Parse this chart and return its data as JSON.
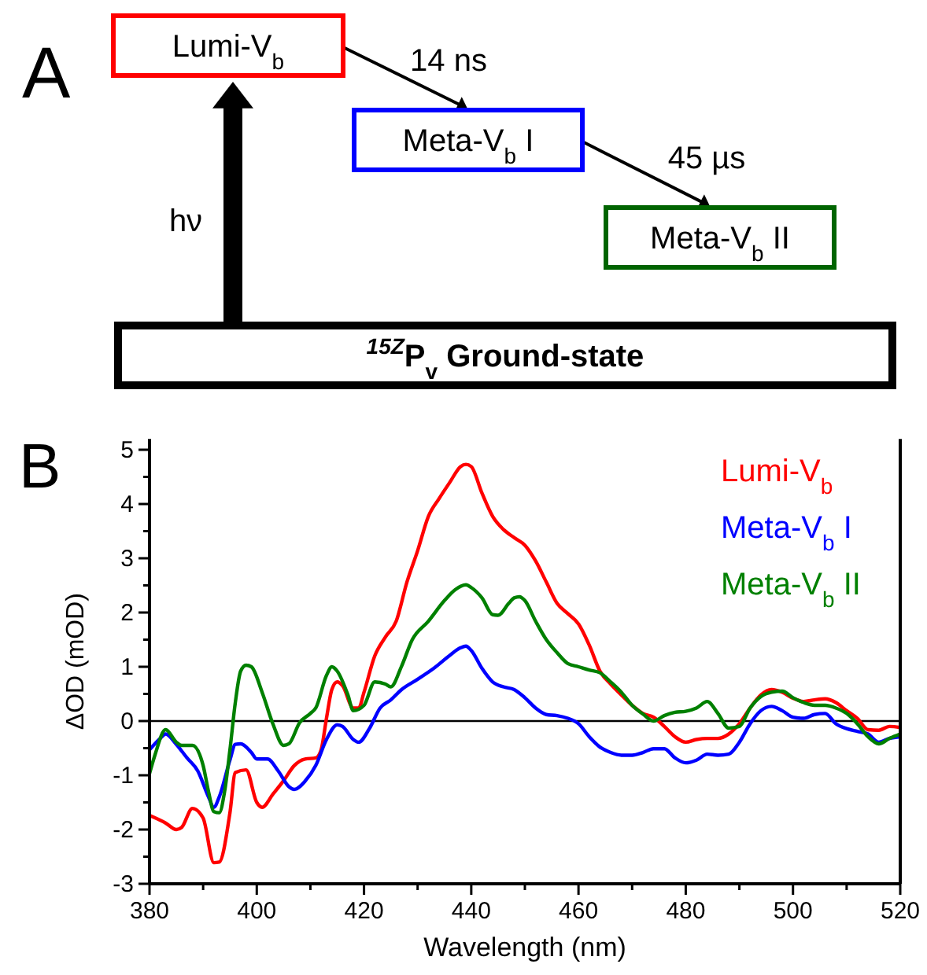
{
  "chart_data": [
    {
      "type": "other",
      "title": "A",
      "annotations": [
        "Lumi-V$_{b}$",
        "14 ns",
        "Meta-V$_{b}$ I",
        "45 µs",
        "Meta-V$_{b}$ II",
        "hν",
        "$^{15Z}$P$_{v}$ Ground-state"
      ]
    },
    {
      "type": "line",
      "title": "B",
      "xlabel": "Wavelength (nm)",
      "ylabel": "ΔOD (mOD)",
      "xlim": [
        380,
        520
      ],
      "ylim": [
        -3,
        5.2
      ],
      "xticks": [
        380,
        {
          "value": 390,
          "label": null
        },
        400,
        {
          "value": 410,
          "label": null
        },
        420,
        {
          "value": 430,
          "label": null
        },
        440,
        {
          "value": 450,
          "label": null
        },
        460,
        {
          "value": 470,
          "label": null
        },
        480,
        {
          "value": 490,
          "label": null
        },
        500,
        {
          "value": 510,
          "label": null
        },
        520
      ],
      "yticks": [
        -3,
        {
          "value": -2.5,
          "label": null
        },
        -2,
        {
          "value": -1.5,
          "label": null
        },
        -1,
        {
          "value": -0.5,
          "label": null
        },
        0,
        {
          "value": 0.5,
          "label": null
        },
        1,
        {
          "value": 1.5,
          "label": null
        },
        2,
        {
          "value": 2.5,
          "label": null
        },
        3,
        {
          "value": 3.5,
          "label": null
        },
        4,
        {
          "value": 4.5,
          "label": null
        },
        5
      ],
      "grid": false,
      "legend": "top right",
      "marker": "none",
      "line_style": "solid",
      "ref_lines": [
        {
          "axis": "y",
          "value": 0,
          "color": "#000000"
        }
      ],
      "series": [
        {
          "name": "Lumi-V$_{b}$",
          "color": "#ff0000",
          "x": [
            380,
            383,
            385,
            386,
            388,
            390,
            392,
            393,
            395,
            396,
            398,
            400,
            401,
            403,
            405,
            407,
            409,
            411,
            412,
            413,
            414,
            415,
            416,
            418,
            419,
            420,
            422,
            424,
            426,
            428,
            430,
            432,
            434,
            436,
            438,
            439,
            440,
            442,
            444,
            446,
            448,
            450,
            452,
            454,
            456,
            458,
            460,
            462,
            464,
            466,
            468,
            470,
            472,
            474,
            476,
            478,
            480,
            482,
            484,
            486,
            488,
            490,
            492,
            494,
            496,
            498,
            500,
            502,
            504,
            506,
            508,
            510,
            512,
            514,
            516,
            518,
            520
          ],
          "values": [
            -1.74,
            -1.88,
            -2.0,
            -1.96,
            -1.61,
            -1.79,
            -2.61,
            -2.6,
            -1.69,
            -0.95,
            -0.9,
            -1.5,
            -1.59,
            -1.35,
            -1.1,
            -0.82,
            -0.7,
            -0.68,
            -0.53,
            0.05,
            0.58,
            0.72,
            0.65,
            0.24,
            0.24,
            0.53,
            1.2,
            1.55,
            1.84,
            2.56,
            3.14,
            3.77,
            4.1,
            4.4,
            4.69,
            4.73,
            4.69,
            4.2,
            3.77,
            3.53,
            3.38,
            3.24,
            2.95,
            2.56,
            2.17,
            1.98,
            1.79,
            1.4,
            0.92,
            0.68,
            0.48,
            0.29,
            0.14,
            0.07,
            -0.1,
            -0.29,
            -0.39,
            -0.34,
            -0.32,
            -0.32,
            -0.24,
            -0.05,
            0.24,
            0.48,
            0.58,
            0.53,
            0.42,
            0.36,
            0.39,
            0.41,
            0.34,
            0.19,
            0.05,
            -0.16,
            -0.17,
            -0.1,
            -0.12
          ]
        },
        {
          "name": "Meta-V$_{b}$ I",
          "color": "#0000ff",
          "x": [
            380,
            382,
            383,
            385,
            387,
            389,
            391,
            392,
            393,
            395,
            396,
            397,
            399,
            400,
            402,
            404,
            406,
            407,
            409,
            411,
            413,
            415,
            416,
            418,
            419,
            421,
            423,
            425,
            427,
            430,
            433,
            436,
            438,
            439,
            440,
            442,
            444,
            446,
            448,
            450,
            452,
            454,
            456,
            458,
            460,
            462,
            464,
            466,
            468,
            470,
            472,
            474,
            476,
            478,
            480,
            482,
            484,
            486,
            488,
            490,
            492,
            494,
            496,
            498,
            500,
            502,
            504,
            506,
            508,
            510,
            512,
            514,
            516,
            518,
            520
          ],
          "values": [
            -0.53,
            -0.32,
            -0.24,
            -0.43,
            -0.68,
            -0.92,
            -1.4,
            -1.59,
            -1.4,
            -0.72,
            -0.43,
            -0.42,
            -0.58,
            -0.7,
            -0.7,
            -0.92,
            -1.21,
            -1.26,
            -1.11,
            -0.82,
            -0.34,
            -0.07,
            -0.1,
            -0.34,
            -0.39,
            -0.14,
            0.24,
            0.39,
            0.58,
            0.77,
            0.97,
            1.21,
            1.35,
            1.38,
            1.3,
            0.97,
            0.72,
            0.63,
            0.58,
            0.43,
            0.24,
            0.12,
            0.1,
            0.05,
            -0.05,
            -0.29,
            -0.48,
            -0.58,
            -0.63,
            -0.63,
            -0.58,
            -0.51,
            -0.51,
            -0.68,
            -0.77,
            -0.72,
            -0.61,
            -0.63,
            -0.61,
            -0.39,
            -0.05,
            0.19,
            0.27,
            0.19,
            0.07,
            0.05,
            0.12,
            0.14,
            -0.05,
            -0.14,
            -0.19,
            -0.24,
            -0.39,
            -0.32,
            -0.29
          ]
        },
        {
          "name": "Meta-V$_{b}$ II",
          "color": "#008000",
          "x": [
            380,
            381,
            383,
            385,
            386,
            388,
            390,
            391,
            392,
            393,
            394,
            395,
            396,
            397,
            398,
            399,
            401,
            403,
            405,
            406,
            408,
            410,
            411,
            413,
            414,
            415,
            417,
            418,
            420,
            422,
            424,
            425,
            427,
            429,
            432,
            435,
            437,
            439,
            440,
            442,
            444,
            445,
            447,
            448,
            449,
            450,
            452,
            454,
            456,
            458,
            460,
            462,
            464,
            466,
            468,
            470,
            472,
            474,
            476,
            478,
            480,
            482,
            484,
            486,
            488,
            490,
            492,
            494,
            496,
            498,
            500,
            502,
            504,
            506,
            508,
            510,
            512,
            514,
            516,
            518,
            520
          ],
          "values": [
            -0.97,
            -0.63,
            -0.16,
            -0.39,
            -0.45,
            -0.45,
            -0.82,
            -1.3,
            -1.67,
            -1.69,
            -1.3,
            -0.53,
            0.34,
            0.92,
            1.03,
            1.0,
            0.53,
            -0.05,
            -0.45,
            -0.42,
            -0.03,
            0.14,
            0.24,
            0.84,
            1.0,
            0.92,
            0.48,
            0.19,
            0.29,
            0.72,
            0.68,
            0.63,
            1.01,
            1.5,
            1.84,
            2.22,
            2.42,
            2.51,
            2.46,
            2.27,
            1.96,
            1.95,
            2.17,
            2.27,
            2.29,
            2.22,
            1.84,
            1.5,
            1.26,
            1.06,
            1.0,
            0.94,
            0.89,
            0.72,
            0.53,
            0.29,
            0.13,
            0.0,
            0.1,
            0.16,
            0.18,
            0.24,
            0.36,
            0.14,
            -0.13,
            -0.1,
            0.24,
            0.45,
            0.53,
            0.55,
            0.43,
            0.34,
            0.29,
            0.29,
            0.24,
            0.14,
            -0.05,
            -0.29,
            -0.42,
            -0.32,
            -0.24
          ]
        }
      ]
    }
  ]
}
